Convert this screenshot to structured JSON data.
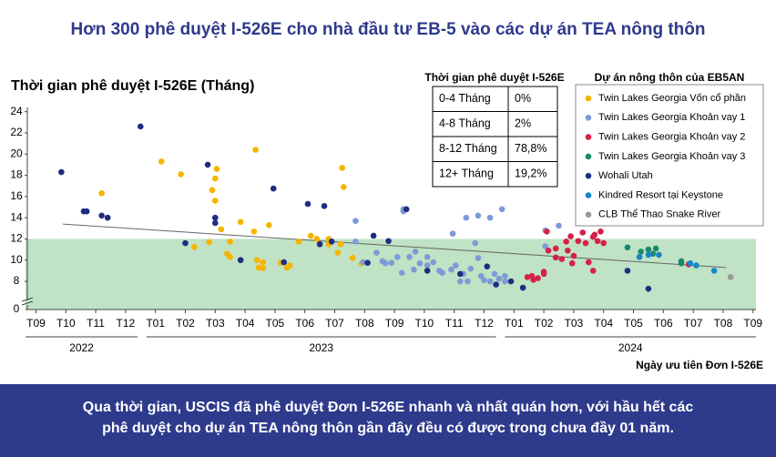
{
  "chart_data": {
    "type": "scatter",
    "title": "Hơn 300 phê duyệt I-526E cho nhà đầu tư EB-5 vào các dự án TEA nông thôn",
    "y_label": "Thời gian phê duyệt I-526E (Tháng)",
    "x_label": "Ngày ưu tiên Đơn I-526E",
    "ylim": [
      6.2,
      24.4
    ],
    "yticks": [
      8,
      10,
      12,
      14,
      16,
      18,
      20,
      22,
      24
    ],
    "y_break_tick": 0,
    "xlim": [
      -0.35,
      24.1
    ],
    "xticks": [
      {
        "value": 0,
        "label": "T09"
      },
      {
        "value": 1,
        "label": "T10"
      },
      {
        "value": 2,
        "label": "T11"
      },
      {
        "value": 3,
        "label": "T12"
      },
      {
        "value": 4,
        "label": "T01"
      },
      {
        "value": 5,
        "label": "T02"
      },
      {
        "value": 6,
        "label": "T03"
      },
      {
        "value": 7,
        "label": "T04"
      },
      {
        "value": 8,
        "label": "T05"
      },
      {
        "value": 9,
        "label": "T06"
      },
      {
        "value": 10,
        "label": "T07"
      },
      {
        "value": 11,
        "label": "T08"
      },
      {
        "value": 12,
        "label": "T09"
      },
      {
        "value": 13,
        "label": "T10"
      },
      {
        "value": 14,
        "label": "T11"
      },
      {
        "value": 15,
        "label": "T12"
      },
      {
        "value": 16,
        "label": "T01"
      },
      {
        "value": 17,
        "label": "T02"
      },
      {
        "value": 18,
        "label": "T03"
      },
      {
        "value": 19,
        "label": "T04"
      },
      {
        "value": 20,
        "label": "T05"
      },
      {
        "value": 21,
        "label": "T06"
      },
      {
        "value": 22,
        "label": "T07"
      },
      {
        "value": 23,
        "label": "T08"
      },
      {
        "value": 24,
        "label": "T09"
      }
    ],
    "years": [
      "2022",
      "2023",
      "2024"
    ],
    "highlight_max": 12,
    "highlight_color": "#bfe3c4",
    "trend": {
      "x": [
        0.9,
        23.1
      ],
      "values": [
        13.4,
        9.3
      ],
      "color": "#666666"
    },
    "legend_title": "Dự án nông thôn của EB5AN",
    "series": [
      {
        "name": "Twin Lakes Georgia Vốn cổ phần",
        "color": "#f5b400",
        "x": [
          4.2,
          4.85,
          5.3,
          5.8,
          6.0,
          5.9,
          6.0,
          6.05,
          6.2,
          6.4,
          6.5,
          6.5,
          6.85,
          7.3,
          7.35,
          7.4,
          7.45,
          7.6,
          7.6,
          7.8,
          8.2,
          8.5,
          8.8,
          9.2,
          9.4,
          9.8,
          9.8,
          10.1,
          10.3,
          10.25,
          10.2,
          10.6,
          10.9,
          2.2,
          8.4
        ],
        "values": [
          19.3,
          18.1,
          11.25,
          11.7,
          17.7,
          16.6,
          15.6,
          18.6,
          12.9,
          10.6,
          10.3,
          11.75,
          13.6,
          12.7,
          20.4,
          10.0,
          9.3,
          9.8,
          9.25,
          13.3,
          9.75,
          9.5,
          11.75,
          12.3,
          12.0,
          12.0,
          11.5,
          10.7,
          16.9,
          18.7,
          11.5,
          10.2,
          9.7,
          16.3,
          9.3
        ]
      },
      {
        "name": "Twin Lakes Georgia Khoản vay 1",
        "color": "#7d9ad8",
        "x": [
          10.7,
          10.7,
          11.4,
          11.6,
          11.9,
          12.1,
          12.3,
          12.5,
          12.7,
          12.85,
          13.1,
          13.3,
          13.5,
          13.6,
          13.9,
          13.95,
          14.05,
          14.3,
          14.4,
          14.55,
          14.7,
          14.8,
          14.9,
          15.0,
          15.2,
          15.35,
          15.5,
          15.6,
          15.7,
          15.7,
          14.8,
          13.1,
          14.2,
          10.95,
          11.7,
          12.25,
          12.65,
          14.45,
          15.2,
          12.3,
          17.05,
          17.5,
          17.05
        ],
        "values": [
          13.7,
          11.75,
          10.7,
          9.9,
          9.75,
          10.3,
          14.8,
          10.3,
          10.8,
          9.7,
          9.5,
          9.8,
          9.0,
          8.8,
          9.1,
          12.5,
          9.5,
          8.7,
          14.0,
          9.2,
          11.6,
          10.2,
          8.5,
          8.1,
          14.0,
          8.7,
          8.25,
          14.8,
          8.5,
          8.0,
          14.2,
          10.3,
          8.0,
          9.8,
          9.7,
          8.8,
          9.1,
          8.0,
          8.0,
          14.6,
          12.8,
          13.25,
          11.3
        ]
      },
      {
        "name": "Twin Lakes Georgia Khoản vay 2",
        "color": "#d6204a",
        "x": [
          16.45,
          16.6,
          16.8,
          17.0,
          17.0,
          16.65,
          17.1,
          17.15,
          17.4,
          17.4,
          17.75,
          17.8,
          17.9,
          18.0,
          18.15,
          18.3,
          18.4,
          18.5,
          18.65,
          18.7,
          18.8,
          18.9,
          19.0,
          18.65,
          17.95,
          17.6,
          21.85
        ],
        "values": [
          8.4,
          8.5,
          8.3,
          8.9,
          8.7,
          8.15,
          12.7,
          10.9,
          10.25,
          11.1,
          11.75,
          10.9,
          12.25,
          10.4,
          11.8,
          12.6,
          11.6,
          9.8,
          12.2,
          12.4,
          11.8,
          12.7,
          11.6,
          9.0,
          9.7,
          10.1,
          9.6
        ]
      },
      {
        "name": "Twin Lakes Georgia Khoản vay 3",
        "color": "#1a8a6e",
        "x": [
          19.8,
          20.25,
          20.5,
          20.65,
          21.6,
          21.6,
          20.75
        ],
        "values": [
          11.2,
          10.8,
          11.0,
          10.6,
          9.9,
          9.7,
          11.1
        ]
      },
      {
        "name": "Wohali Utah",
        "color": "#1f2d80",
        "x": [
          0.85,
          1.6,
          1.7,
          2.2,
          2.4,
          3.5,
          5.0,
          5.75,
          6.0,
          6.0,
          6.85,
          7.95,
          8.3,
          9.1,
          9.5,
          9.65,
          9.9,
          11.3,
          11.8,
          11.1,
          12.4,
          13.1,
          14.2,
          15.1,
          15.4,
          15.9,
          16.3,
          19.8,
          20.5
        ],
        "values": [
          18.3,
          14.6,
          14.6,
          14.2,
          14.0,
          22.6,
          11.6,
          19.0,
          14.0,
          13.5,
          10.0,
          16.75,
          9.8,
          15.3,
          11.5,
          15.1,
          11.75,
          12.3,
          11.8,
          9.75,
          14.8,
          9.0,
          8.7,
          9.4,
          7.7,
          8.0,
          7.4,
          9.0,
          7.3
        ]
      },
      {
        "name": "Kindred Resort tại Keystone",
        "color": "#1a86c8",
        "x": [
          20.2,
          20.5,
          20.85,
          21.9,
          22.1,
          22.7
        ],
        "values": [
          10.3,
          10.5,
          10.5,
          9.7,
          9.5,
          9.0
        ]
      },
      {
        "name": "CLB Thể Thao Snake River",
        "color": "#999999",
        "x": [
          23.25
        ],
        "values": [
          8.4
        ]
      }
    ],
    "table": {
      "title": "Thời gian phê duyệt I-526E",
      "rows": [
        [
          "0-4 Tháng",
          "0%"
        ],
        [
          "4-8 Tháng",
          "2%"
        ],
        [
          "8-12 Tháng",
          "78,8%"
        ],
        [
          "12+ Tháng",
          "19,2%"
        ]
      ]
    },
    "footer": [
      "Qua thời gian, USCIS đã phê duyệt Đơn I-526E nhanh và nhất quán hơn,  với hầu hết các",
      "phê duyệt cho dự án TEA nông thôn gần đây đều có được trong chưa đầy 01 năm."
    ]
  }
}
